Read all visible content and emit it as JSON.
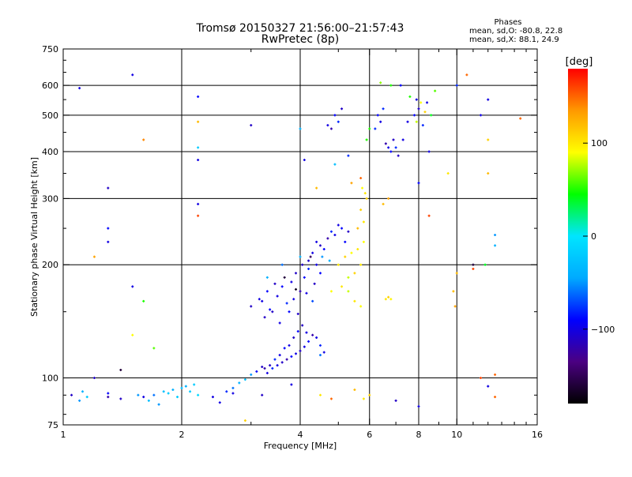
{
  "chart_data": {
    "type": "scatter",
    "title": "Tromsø 20150327 21:56:00–21:57:43",
    "subtitle": "RwPretec (8p)",
    "xlabel": "Frequency [MHz]",
    "ylabel": "Stationary phase Virtual Height [km]",
    "x_scale": "log",
    "y_scale": "log",
    "xlim": [
      1,
      16
    ],
    "ylim": [
      75,
      750
    ],
    "x_ticks": [
      1,
      2,
      4,
      6,
      8,
      10,
      16
    ],
    "y_ticks": [
      75,
      100,
      200,
      300,
      400,
      500,
      600,
      750
    ],
    "x_grid": [
      2,
      4,
      6,
      8,
      10
    ],
    "y_grid": [
      100,
      200,
      300,
      400,
      500,
      600
    ],
    "grid": true,
    "stats": {
      "heading": "Phases",
      "line1": "mean, sd,O: -80.8, 22.8",
      "line2": "mean, sd,X: 88.1, 24.9"
    },
    "colorbar": {
      "label": "[deg]",
      "range": [
        -180,
        180
      ],
      "ticks": [
        {
          "value": 100,
          "label": "100"
        },
        {
          "value": 0,
          "label": "0"
        },
        {
          "value": -100,
          "label": "−100"
        }
      ],
      "colors": [
        "#000000",
        "#4b0082",
        "#0000ff",
        "#00aaff",
        "#00e5ff",
        "#00ff00",
        "#ffff00",
        "#ff9900",
        "#ff0000"
      ]
    },
    "points": [
      [
        1.05,
        90,
        -110
      ],
      [
        1.12,
        92,
        -40
      ],
      [
        1.15,
        89,
        -20
      ],
      [
        1.3,
        91,
        -90
      ],
      [
        1.4,
        88,
        -110
      ],
      [
        1.55,
        90,
        -50
      ],
      [
        1.7,
        90,
        -60
      ],
      [
        1.8,
        92,
        -30
      ],
      [
        1.85,
        91,
        -20
      ],
      [
        1.9,
        93,
        -40
      ],
      [
        2.0,
        94,
        -30
      ],
      [
        2.1,
        92,
        -20
      ],
      [
        2.2,
        90,
        -10
      ],
      [
        2.05,
        95,
        -40
      ],
      [
        1.95,
        89,
        -20
      ],
      [
        1.75,
        85,
        -50
      ],
      [
        1.65,
        87,
        -30
      ],
      [
        2.15,
        96,
        -20
      ],
      [
        2.4,
        89,
        -100
      ],
      [
        2.6,
        92,
        -80
      ],
      [
        2.7,
        94,
        -60
      ],
      [
        2.8,
        97,
        -40
      ],
      [
        2.9,
        99,
        -30
      ],
      [
        3.0,
        102,
        -50
      ],
      [
        3.1,
        104,
        -90
      ],
      [
        3.2,
        107,
        -110
      ],
      [
        3.3,
        103,
        -100
      ],
      [
        3.4,
        106,
        -80
      ],
      [
        3.5,
        108,
        -100
      ],
      [
        3.6,
        110,
        -110
      ],
      [
        3.7,
        112,
        -120
      ],
      [
        3.8,
        114,
        -90
      ],
      [
        3.9,
        116,
        -100
      ],
      [
        4.0,
        118,
        -110
      ],
      [
        4.1,
        121,
        -100
      ],
      [
        4.2,
        125,
        -90
      ],
      [
        4.3,
        130,
        -120
      ],
      [
        4.4,
        128,
        -100
      ],
      [
        4.5,
        122,
        -80
      ],
      [
        3.75,
        122,
        -100
      ],
      [
        3.85,
        128,
        -110
      ],
      [
        3.95,
        133,
        -90
      ],
      [
        4.05,
        138,
        -110
      ],
      [
        4.15,
        132,
        -100
      ],
      [
        3.65,
        120,
        -90
      ],
      [
        3.55,
        115,
        -100
      ],
      [
        3.45,
        112,
        -80
      ],
      [
        3.35,
        108,
        -110
      ],
      [
        3.25,
        106,
        -120
      ],
      [
        4.5,
        115,
        -60
      ],
      [
        4.6,
        117,
        -100
      ],
      [
        3.0,
        155,
        -110
      ],
      [
        3.2,
        160,
        -100
      ],
      [
        3.3,
        170,
        -90
      ],
      [
        3.4,
        150,
        -110
      ],
      [
        3.5,
        165,
        -100
      ],
      [
        3.6,
        175,
        -90
      ],
      [
        3.7,
        158,
        -80
      ],
      [
        3.8,
        180,
        -100
      ],
      [
        3.9,
        190,
        -110
      ],
      [
        4.0,
        170,
        -120
      ],
      [
        4.1,
        185,
        -90
      ],
      [
        4.2,
        195,
        -80
      ],
      [
        4.3,
        160,
        -70
      ],
      [
        4.4,
        200,
        -100
      ],
      [
        4.5,
        190,
        -90
      ],
      [
        3.25,
        145,
        -110
      ],
      [
        3.35,
        152,
        -90
      ],
      [
        3.55,
        140,
        -100
      ],
      [
        3.75,
        150,
        -90
      ],
      [
        3.95,
        148,
        -110
      ],
      [
        4.15,
        168,
        -100
      ],
      [
        4.35,
        178,
        -110
      ],
      [
        3.15,
        162,
        -100
      ],
      [
        3.45,
        178,
        -110
      ],
      [
        3.85,
        162,
        -100
      ],
      [
        4.05,
        200,
        -110
      ],
      [
        4.25,
        210,
        -150
      ],
      [
        3.65,
        185,
        -160
      ],
      [
        3.9,
        172,
        -170
      ],
      [
        3.3,
        185,
        -40
      ],
      [
        3.6,
        200,
        -60
      ],
      [
        4.0,
        210,
        -40
      ],
      [
        4.3,
        215,
        -100
      ],
      [
        4.5,
        225,
        -110
      ],
      [
        4.7,
        235,
        -120
      ],
      [
        4.9,
        240,
        -100
      ],
      [
        5.1,
        250,
        -90
      ],
      [
        5.3,
        245,
        -110
      ],
      [
        4.4,
        230,
        -100
      ],
      [
        4.6,
        220,
        -90
      ],
      [
        4.8,
        245,
        -80
      ],
      [
        5.0,
        255,
        -100
      ],
      [
        5.2,
        230,
        -90
      ],
      [
        4.2,
        205,
        -110
      ],
      [
        4.55,
        210,
        -50
      ],
      [
        4.75,
        205,
        -40
      ],
      [
        5.0,
        200,
        100
      ],
      [
        5.2,
        210,
        110
      ],
      [
        5.4,
        215,
        90
      ],
      [
        5.6,
        220,
        100
      ],
      [
        5.8,
        230,
        90
      ],
      [
        5.5,
        190,
        110
      ],
      [
        5.7,
        200,
        100
      ],
      [
        5.3,
        185,
        80
      ],
      [
        5.6,
        250,
        120
      ],
      [
        5.8,
        260,
        100
      ],
      [
        5.7,
        280,
        110
      ],
      [
        5.85,
        310,
        100
      ],
      [
        5.75,
        320,
        90
      ],
      [
        5.9,
        300,
        110
      ],
      [
        5.5,
        160,
        100
      ],
      [
        5.3,
        170,
        80
      ],
      [
        5.7,
        155,
        90
      ],
      [
        6.6,
        162,
        100
      ],
      [
        6.7,
        164,
        110
      ],
      [
        6.8,
        162,
        95
      ],
      [
        4.8,
        170,
        90
      ],
      [
        5.1,
        175,
        100
      ],
      [
        4.7,
        470,
        -100
      ],
      [
        4.9,
        500,
        -90
      ],
      [
        5.1,
        520,
        -110
      ],
      [
        5.0,
        480,
        -80
      ],
      [
        4.8,
        460,
        -120
      ],
      [
        6.3,
        500,
        -90
      ],
      [
        6.4,
        480,
        -100
      ],
      [
        6.5,
        520,
        -80
      ],
      [
        6.6,
        420,
        -120
      ],
      [
        6.7,
        410,
        -100
      ],
      [
        6.8,
        400,
        -90
      ],
      [
        6.9,
        430,
        -110
      ],
      [
        7.0,
        410,
        -80
      ],
      [
        7.5,
        480,
        -100
      ],
      [
        7.8,
        500,
        -90
      ],
      [
        8.0,
        520,
        -110
      ],
      [
        8.2,
        470,
        -80
      ],
      [
        8.4,
        540,
        -100
      ],
      [
        7.6,
        560,
        50
      ],
      [
        8.1,
        540,
        90
      ],
      [
        8.3,
        510,
        110
      ],
      [
        7.9,
        480,
        80
      ],
      [
        8.6,
        500,
        40
      ],
      [
        6.4,
        610,
        70
      ],
      [
        6.8,
        600,
        50
      ],
      [
        8.8,
        580,
        60
      ],
      [
        1.1,
        590,
        -100
      ],
      [
        1.5,
        640,
        -100
      ],
      [
        2.2,
        560,
        -90
      ],
      [
        2.2,
        480,
        120
      ],
      [
        1.3,
        320,
        -110
      ],
      [
        1.3,
        250,
        -90
      ],
      [
        1.3,
        230,
        -100
      ],
      [
        1.2,
        210,
        130
      ],
      [
        1.5,
        175,
        -100
      ],
      [
        1.6,
        160,
        50
      ],
      [
        1.6,
        430,
        140
      ],
      [
        2.2,
        410,
        -20
      ],
      [
        2.2,
        380,
        -100
      ],
      [
        2.2,
        290,
        -100
      ],
      [
        2.2,
        270,
        160
      ],
      [
        4.1,
        380,
        -100
      ],
      [
        4.0,
        460,
        -40
      ],
      [
        3.0,
        470,
        -110
      ],
      [
        7.2,
        600,
        -90
      ],
      [
        10.6,
        640,
        150
      ],
      [
        12.0,
        550,
        -100
      ],
      [
        14.5,
        490,
        150
      ],
      [
        11.5,
        500,
        -100
      ],
      [
        10.0,
        600,
        -80
      ],
      [
        11.0,
        200,
        -160
      ],
      [
        11.0,
        195,
        160
      ],
      [
        12.5,
        240,
        -50
      ],
      [
        12.5,
        225,
        -40
      ],
      [
        12.0,
        350,
        120
      ],
      [
        12.0,
        430,
        110
      ],
      [
        9.5,
        350,
        100
      ],
      [
        9.8,
        170,
        120
      ],
      [
        9.9,
        155,
        130
      ],
      [
        8.5,
        400,
        -100
      ],
      [
        8.5,
        270,
        160
      ],
      [
        8.0,
        330,
        -90
      ],
      [
        7.9,
        550,
        -100
      ],
      [
        12.0,
        95,
        -100
      ],
      [
        12.5,
        102,
        150
      ],
      [
        12.5,
        89,
        150
      ],
      [
        8.0,
        84,
        -100
      ],
      [
        7.0,
        87,
        -110
      ],
      [
        5.8,
        88,
        100
      ],
      [
        5.5,
        93,
        120
      ],
      [
        6.0,
        90,
        110
      ],
      [
        4.8,
        88,
        150
      ],
      [
        4.5,
        90,
        100
      ],
      [
        3.8,
        96,
        -100
      ],
      [
        3.2,
        90,
        -110
      ],
      [
        2.5,
        86,
        -100
      ],
      [
        2.7,
        91,
        -100
      ],
      [
        1.6,
        89,
        -100
      ],
      [
        1.3,
        89,
        -120
      ],
      [
        1.1,
        87,
        -50
      ],
      [
        1.4,
        105,
        -160
      ],
      [
        1.2,
        100,
        -110
      ],
      [
        1.7,
        120,
        60
      ],
      [
        1.5,
        130,
        90
      ],
      [
        2.9,
        77,
        110
      ],
      [
        10.0,
        190,
        120
      ],
      [
        11.5,
        100,
        160
      ],
      [
        11.8,
        200,
        40
      ],
      [
        5.4,
        330,
        130
      ],
      [
        5.7,
        340,
        150
      ],
      [
        6.5,
        290,
        120
      ],
      [
        6.7,
        300,
        130
      ],
      [
        4.9,
        370,
        -30
      ],
      [
        5.3,
        390,
        -80
      ],
      [
        4.4,
        320,
        120
      ],
      [
        5.9,
        430,
        50
      ],
      [
        6.0,
        460,
        50
      ],
      [
        6.2,
        460,
        -80
      ],
      [
        7.3,
        430,
        -100
      ],
      [
        7.1,
        390,
        -110
      ]
    ]
  }
}
